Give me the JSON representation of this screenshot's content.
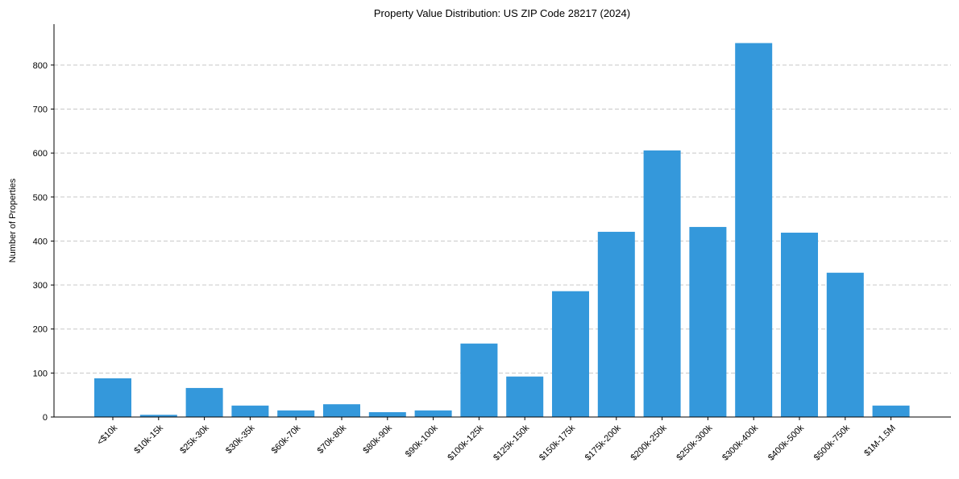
{
  "chart_data": {
    "type": "bar",
    "title": "Property Value Distribution: US ZIP Code 28217 (2024)",
    "xlabel": "",
    "ylabel": "Number of Properties",
    "categories": [
      "<$10k",
      "$10k-15k",
      "$25k-30k",
      "$30k-35k",
      "$60k-70k",
      "$70k-80k",
      "$80k-90k",
      "$90k-100k",
      "$100k-125k",
      "$125k-150k",
      "$150k-175k",
      "$175k-200k",
      "$200k-250k",
      "$250k-300k",
      "$300k-400k",
      "$400k-500k",
      "$500k-750k",
      "$1M-1.5M"
    ],
    "values": [
      88,
      5,
      66,
      26,
      15,
      29,
      11,
      15,
      167,
      92,
      286,
      421,
      606,
      432,
      850,
      419,
      328,
      26
    ],
    "ylim": [
      0,
      893
    ],
    "yticks": [
      0,
      100,
      200,
      300,
      400,
      500,
      600,
      700,
      800
    ],
    "grid": "y dashed",
    "bar_color": "#3498db"
  }
}
